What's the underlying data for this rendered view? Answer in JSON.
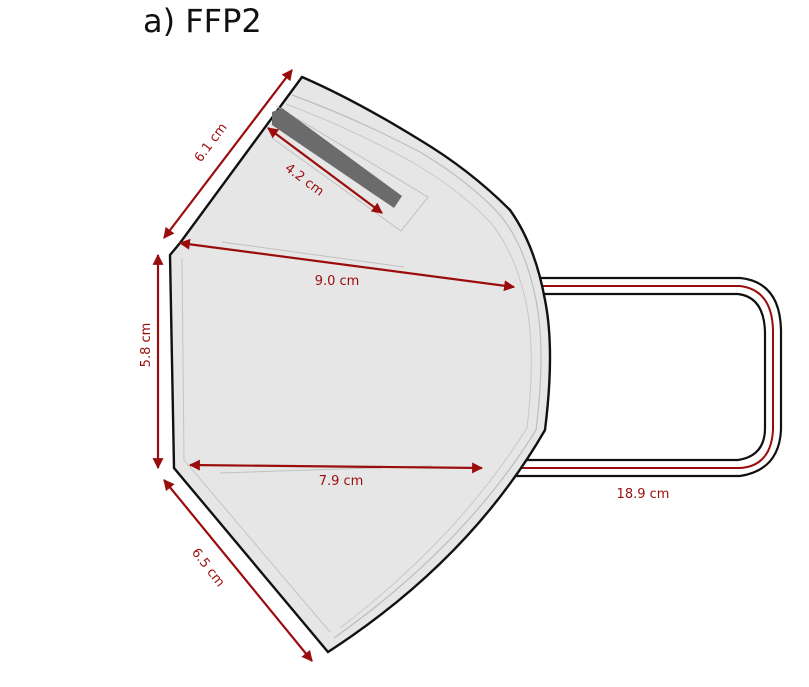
{
  "title": "a) FFP2",
  "colors": {
    "accent": "#9b0d0d",
    "mask_fill": "#e6e6e6",
    "outline": "#111111",
    "nose_clip": "#6b6b6b"
  },
  "dimensions": {
    "top_edge": "6.1 cm",
    "nose_clip": "4.2 cm",
    "upper_width": "9.0 cm",
    "left_height": "5.8 cm",
    "lower_width": "7.9 cm",
    "strap": "18.9 cm",
    "bottom_edge": "6.5 cm"
  }
}
